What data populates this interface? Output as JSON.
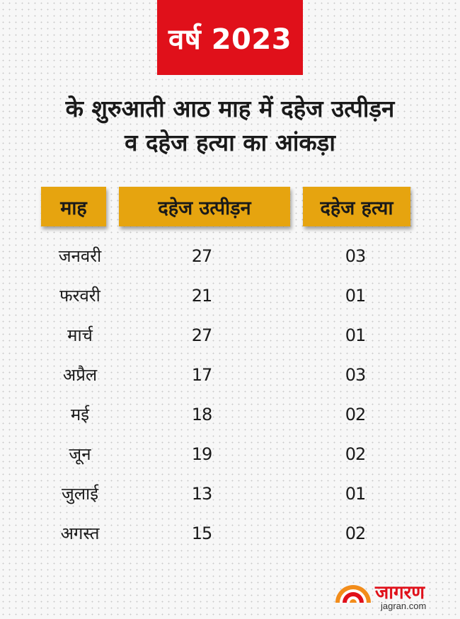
{
  "badge": {
    "text": "वर्ष 2023"
  },
  "headline": {
    "line1": "के शुरुआती आठ माह में दहेज उत्पीड़न",
    "line2": "व दहेज हत्या का आंकड़ा"
  },
  "table": {
    "headers": [
      "माह",
      "दहेज उत्पीड़न",
      "दहेज हत्या"
    ],
    "rows": [
      [
        "जनवरी",
        "27",
        "03"
      ],
      [
        "फरवरी",
        "21",
        "01"
      ],
      [
        "मार्च",
        "27",
        "01"
      ],
      [
        "अप्रैल",
        "17",
        "03"
      ],
      [
        "मई",
        "18",
        "02"
      ],
      [
        "जून",
        "19",
        "02"
      ],
      [
        "जुलाई",
        "13",
        "01"
      ],
      [
        "अगस्त",
        "15",
        "02"
      ]
    ]
  },
  "logo": {
    "name": "जागरण",
    "url": "jagran.com",
    "icon": "rising-sun-icon"
  },
  "colors": {
    "badge_red": "#e0101a",
    "header_gold": "#e6a40f",
    "logo_red": "#e0101a",
    "logo_orange": "#f28c1a"
  }
}
